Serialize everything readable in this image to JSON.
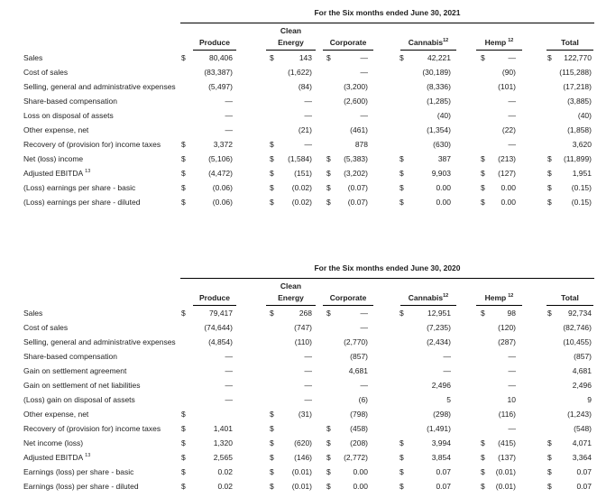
{
  "tables": [
    {
      "period_title": "For the Six months ended June 30, 2021",
      "col_group_top": "Clean",
      "columns": [
        {
          "label": "Produce",
          "sup": "",
          "sup_space": false
        },
        {
          "label": "Energy",
          "sup": "",
          "sup_space": false
        },
        {
          "label": "Corporate",
          "sup": "",
          "sup_space": false
        },
        {
          "label": "Cannabis",
          "sup": "12",
          "sup_space": false
        },
        {
          "label": "Hemp",
          "sup": "12",
          "sup_space": true
        },
        {
          "label": "Total",
          "sup": "",
          "sup_space": false
        }
      ],
      "rows": [
        {
          "label": "Sales",
          "sup": "",
          "cells": [
            [
              "$",
              "80,406"
            ],
            [
              "$",
              "143"
            ],
            [
              "$",
              "—"
            ],
            [
              "$",
              "42,221"
            ],
            [
              "$",
              "—"
            ],
            [
              "$",
              "122,770"
            ]
          ]
        },
        {
          "label": "Cost of sales",
          "sup": "",
          "cells": [
            [
              "",
              "(83,387)"
            ],
            [
              "",
              "(1,622)"
            ],
            [
              "",
              "—"
            ],
            [
              "",
              "(30,189)"
            ],
            [
              "",
              "(90)"
            ],
            [
              "",
              "(115,288)"
            ]
          ]
        },
        {
          "label": "Selling, general and administrative expenses",
          "sup": "",
          "cells": [
            [
              "",
              "(5,497)"
            ],
            [
              "",
              "(84)"
            ],
            [
              "",
              "(3,200)"
            ],
            [
              "",
              "(8,336)"
            ],
            [
              "",
              "(101)"
            ],
            [
              "",
              "(17,218)"
            ]
          ]
        },
        {
          "label": "Share-based compensation",
          "sup": "",
          "cells": [
            [
              "",
              "—"
            ],
            [
              "",
              "—"
            ],
            [
              "",
              "(2,600)"
            ],
            [
              "",
              "(1,285)"
            ],
            [
              "",
              "—"
            ],
            [
              "",
              "(3,885)"
            ]
          ]
        },
        {
          "label": "Loss on disposal of assets",
          "sup": "",
          "cells": [
            [
              "",
              "—"
            ],
            [
              "",
              "—"
            ],
            [
              "",
              "—"
            ],
            [
              "",
              "(40)"
            ],
            [
              "",
              "—"
            ],
            [
              "",
              "(40)"
            ]
          ]
        },
        {
          "label": "Other expense, net",
          "sup": "",
          "cells": [
            [
              "",
              "—"
            ],
            [
              "",
              "(21)"
            ],
            [
              "",
              "(461)"
            ],
            [
              "",
              "(1,354)"
            ],
            [
              "",
              "(22)"
            ],
            [
              "",
              "(1,858)"
            ]
          ]
        },
        {
          "label": "Recovery of (provision for) income taxes",
          "sup": "",
          "cells": [
            [
              "$",
              "3,372"
            ],
            [
              "$",
              "—"
            ],
            [
              "",
              "878"
            ],
            [
              "",
              "(630)"
            ],
            [
              "",
              "—"
            ],
            [
              "",
              "3,620"
            ]
          ]
        },
        {
          "label": "Net (loss) income",
          "sup": "",
          "cells": [
            [
              "$",
              "(5,106)"
            ],
            [
              "$",
              "(1,584)"
            ],
            [
              "$",
              "(5,383)"
            ],
            [
              "$",
              "387"
            ],
            [
              "$",
              "(213)"
            ],
            [
              "$",
              "(11,899)"
            ]
          ]
        },
        {
          "label": "Adjusted EBITDA",
          "sup": "13",
          "cells": [
            [
              "$",
              "(4,472)"
            ],
            [
              "$",
              "(151)"
            ],
            [
              "$",
              "(3,202)"
            ],
            [
              "$",
              "9,903"
            ],
            [
              "$",
              "(127)"
            ],
            [
              "$",
              "1,951"
            ]
          ]
        },
        {
          "label": "(Loss) earnings per share - basic",
          "sup": "",
          "cells": [
            [
              "$",
              "(0.06)"
            ],
            [
              "$",
              "(0.02)"
            ],
            [
              "$",
              "(0.07)"
            ],
            [
              "$",
              "0.00"
            ],
            [
              "$",
              "0.00"
            ],
            [
              "$",
              "(0.15)"
            ]
          ]
        },
        {
          "label": "(Loss) earnings per share - diluted",
          "sup": "",
          "cells": [
            [
              "$",
              "(0.06)"
            ],
            [
              "$",
              "(0.02)"
            ],
            [
              "$",
              "(0.07)"
            ],
            [
              "$",
              "0.00"
            ],
            [
              "$",
              "0.00"
            ],
            [
              "$",
              "(0.15)"
            ]
          ]
        }
      ]
    },
    {
      "period_title": "For the Six months ended June 30, 2020",
      "col_group_top": "Clean",
      "columns": [
        {
          "label": "Produce",
          "sup": "",
          "sup_space": false
        },
        {
          "label": "Energy",
          "sup": "",
          "sup_space": false
        },
        {
          "label": "Corporate",
          "sup": "",
          "sup_space": false
        },
        {
          "label": "Cannabis",
          "sup": "12",
          "sup_space": false
        },
        {
          "label": "Hemp",
          "sup": "12",
          "sup_space": true
        },
        {
          "label": "Total",
          "sup": "",
          "sup_space": false
        }
      ],
      "rows": [
        {
          "label": "Sales",
          "sup": "",
          "cells": [
            [
              "$",
              "79,417"
            ],
            [
              "$",
              "268"
            ],
            [
              "$",
              "—"
            ],
            [
              "$",
              "12,951"
            ],
            [
              "$",
              "98"
            ],
            [
              "$",
              "92,734"
            ]
          ]
        },
        {
          "label": "Cost of sales",
          "sup": "",
          "cells": [
            [
              "",
              "(74,644)"
            ],
            [
              "",
              "(747)"
            ],
            [
              "",
              "—"
            ],
            [
              "",
              "(7,235)"
            ],
            [
              "",
              "(120)"
            ],
            [
              "",
              "(82,746)"
            ]
          ]
        },
        {
          "label": "Selling, general and administrative expenses",
          "sup": "",
          "cells": [
            [
              "",
              "(4,854)"
            ],
            [
              "",
              "(110)"
            ],
            [
              "",
              "(2,770)"
            ],
            [
              "",
              "(2,434)"
            ],
            [
              "",
              "(287)"
            ],
            [
              "",
              "(10,455)"
            ]
          ]
        },
        {
          "label": "Share-based compensation",
          "sup": "",
          "cells": [
            [
              "",
              "—"
            ],
            [
              "",
              "—"
            ],
            [
              "",
              "(857)"
            ],
            [
              "",
              "—"
            ],
            [
              "",
              "—"
            ],
            [
              "",
              "(857)"
            ]
          ]
        },
        {
          "label": "Gain on settlement agreement",
          "sup": "",
          "cells": [
            [
              "",
              "—"
            ],
            [
              "",
              "—"
            ],
            [
              "",
              "4,681"
            ],
            [
              "",
              "—"
            ],
            [
              "",
              "—"
            ],
            [
              "",
              "4,681"
            ]
          ]
        },
        {
          "label": "Gain on settlement of net liabilities",
          "sup": "",
          "cells": [
            [
              "",
              "—"
            ],
            [
              "",
              "—"
            ],
            [
              "",
              "—"
            ],
            [
              "",
              "2,496"
            ],
            [
              "",
              "—"
            ],
            [
              "",
              "2,496"
            ]
          ]
        },
        {
          "label": "(Loss) gain on disposal of assets",
          "sup": "",
          "cells": [
            [
              "",
              "—"
            ],
            [
              "",
              "—"
            ],
            [
              "",
              "(6)"
            ],
            [
              "",
              "5"
            ],
            [
              "",
              "10"
            ],
            [
              "",
              "9"
            ]
          ]
        },
        {
          "label": "Other expense, net",
          "sup": "",
          "cells": [
            [
              "$",
              ""
            ],
            [
              "$",
              "(31)"
            ],
            [
              "",
              "(798)"
            ],
            [
              "",
              "(298)"
            ],
            [
              "",
              "(116)"
            ],
            [
              "",
              "(1,243)"
            ]
          ]
        },
        {
          "label": "Recovery of (provision for) income taxes",
          "sup": "",
          "cells": [
            [
              "$",
              "1,401"
            ],
            [
              "$",
              ""
            ],
            [
              "$",
              "(458)"
            ],
            [
              "",
              "(1,491)"
            ],
            [
              "",
              "—"
            ],
            [
              "",
              "(548)"
            ]
          ]
        },
        {
          "label": "Net income (loss)",
          "sup": "",
          "cells": [
            [
              "$",
              "1,320"
            ],
            [
              "$",
              "(620)"
            ],
            [
              "$",
              "(208)"
            ],
            [
              "$",
              "3,994"
            ],
            [
              "$",
              "(415)"
            ],
            [
              "$",
              "4,071"
            ]
          ]
        },
        {
          "label": "Adjusted EBITDA",
          "sup": "13",
          "cells": [
            [
              "$",
              "2,565"
            ],
            [
              "$",
              "(146)"
            ],
            [
              "$",
              "(2,772)"
            ],
            [
              "$",
              "3,854"
            ],
            [
              "$",
              "(137)"
            ],
            [
              "$",
              "3,364"
            ]
          ]
        },
        {
          "label": "Earnings (loss) per share - basic",
          "sup": "",
          "cells": [
            [
              "$",
              "0.02"
            ],
            [
              "$",
              "(0.01)"
            ],
            [
              "$",
              "0.00"
            ],
            [
              "$",
              "0.07"
            ],
            [
              "$",
              "(0.01)"
            ],
            [
              "$",
              "0.07"
            ]
          ]
        },
        {
          "label": "Earnings (loss) per share - diluted",
          "sup": "",
          "cells": [
            [
              "$",
              "0.02"
            ],
            [
              "$",
              "(0.01)"
            ],
            [
              "$",
              "0.00"
            ],
            [
              "$",
              "0.07"
            ],
            [
              "$",
              "(0.01)"
            ],
            [
              "$",
              "0.07"
            ]
          ]
        }
      ]
    }
  ]
}
